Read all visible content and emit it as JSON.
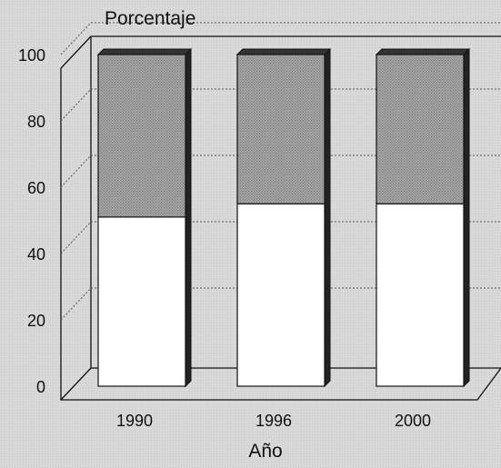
{
  "chart_data": {
    "type": "bar",
    "stacked": true,
    "three_d": true,
    "categories": [
      "1990",
      "1996",
      "2000"
    ],
    "series": [
      {
        "name": "",
        "values": [
          51,
          55,
          55
        ],
        "color": "#ffffff"
      },
      {
        "name": "",
        "values": [
          49,
          45,
          45
        ],
        "color": "#9a9a9a"
      }
    ],
    "ylabel": "Porcentaje",
    "xlabel": "Año",
    "ylim": [
      0,
      100
    ],
    "yticks": [
      "0",
      "20",
      "40",
      "60",
      "80",
      "100"
    ],
    "grid": true,
    "legend": "none"
  }
}
